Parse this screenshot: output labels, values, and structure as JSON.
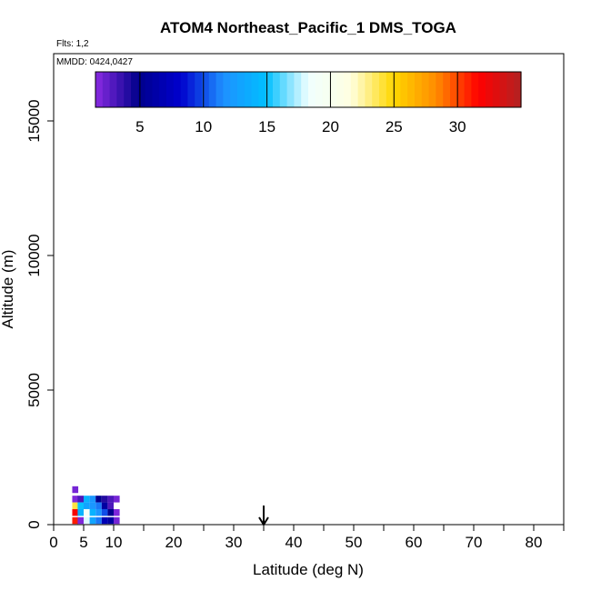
{
  "chart_data": {
    "type": "heatmap",
    "title": "ATOM4 Northeast_Pacific_1 DMS_TOGA",
    "flights_text": "Flts: 1,2",
    "mmdd_text": "MMDD: 0424,0427",
    "xlabel": "Latitude (deg N)",
    "ylabel": "Altitude (m)",
    "xlim": [
      0,
      85
    ],
    "ylim": [
      0,
      17500
    ],
    "xticks_labeled": [
      0,
      5,
      10,
      20,
      30,
      40,
      50,
      60,
      70,
      80
    ],
    "xticks_minor": [
      15,
      25,
      35,
      45,
      55,
      65,
      75,
      85
    ],
    "yticks": [
      0,
      5000,
      10000,
      15000
    ],
    "marker_arrow_latitude": 35,
    "colorbar": {
      "range": [
        1.5,
        35
      ],
      "ticks": [
        5,
        10,
        15,
        20,
        25,
        30
      ],
      "colors": [
        "#8a2be2",
        "#00008b",
        "#0000cd",
        "#1e90ff",
        "#00bfff",
        "#f0ffff",
        "#ffffe0",
        "#ffd700",
        "#ff8c00",
        "#ff0000",
        "#b22222"
      ]
    },
    "cells": [
      {
        "lat": 3.6,
        "alt": 1300,
        "value": 2
      },
      {
        "lat": 3.6,
        "alt": 950,
        "value": 1.8
      },
      {
        "lat": 3.6,
        "alt": 700,
        "value": 24
      },
      {
        "lat": 3.6,
        "alt": 450,
        "value": 32
      },
      {
        "lat": 3.6,
        "alt": 150,
        "value": 31
      },
      {
        "lat": 4.5,
        "alt": 950,
        "value": 3
      },
      {
        "lat": 4.5,
        "alt": 700,
        "value": 15
      },
      {
        "lat": 4.5,
        "alt": 450,
        "value": 14
      },
      {
        "lat": 4.5,
        "alt": 150,
        "value": 1.8
      },
      {
        "lat": 5.5,
        "alt": 950,
        "value": 14
      },
      {
        "lat": 5.5,
        "alt": 700,
        "value": 13
      },
      {
        "lat": 5.5,
        "alt": 450,
        "value": 19
      },
      {
        "lat": 5.5,
        "alt": 150,
        "value": 18
      },
      {
        "lat": 6.5,
        "alt": 950,
        "value": 12
      },
      {
        "lat": 6.5,
        "alt": 700,
        "value": 12
      },
      {
        "lat": 6.5,
        "alt": 450,
        "value": 14
      },
      {
        "lat": 6.5,
        "alt": 150,
        "value": 13
      },
      {
        "lat": 7.5,
        "alt": 950,
        "value": 5
      },
      {
        "lat": 7.5,
        "alt": 700,
        "value": 11
      },
      {
        "lat": 7.5,
        "alt": 450,
        "value": 12
      },
      {
        "lat": 7.5,
        "alt": 150,
        "value": 11
      },
      {
        "lat": 8.5,
        "alt": 950,
        "value": 4
      },
      {
        "lat": 8.5,
        "alt": 700,
        "value": 6
      },
      {
        "lat": 8.5,
        "alt": 450,
        "value": 10
      },
      {
        "lat": 8.5,
        "alt": 150,
        "value": 7
      },
      {
        "lat": 9.5,
        "alt": 950,
        "value": 3
      },
      {
        "lat": 9.5,
        "alt": 700,
        "value": 3
      },
      {
        "lat": 9.5,
        "alt": 450,
        "value": 5
      },
      {
        "lat": 9.5,
        "alt": 150,
        "value": 6
      },
      {
        "lat": 10.5,
        "alt": 950,
        "value": 2
      },
      {
        "lat": 10.5,
        "alt": 450,
        "value": 1.8
      },
      {
        "lat": 10.5,
        "alt": 150,
        "value": 2
      }
    ]
  }
}
